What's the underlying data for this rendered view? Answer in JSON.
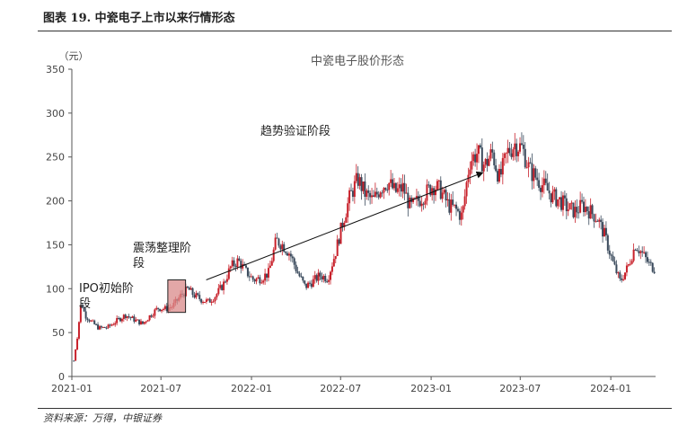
{
  "figure": {
    "title": "图表 19. 中瓷电子上市以来行情形态",
    "source": "资料来源：万得，中银证券"
  },
  "colors": {
    "up": "#c8202a",
    "down": "#3a4a5c",
    "box_fill": "#d98a8a",
    "axis": "#555555"
  },
  "chart_data": {
    "type": "candlestick",
    "title": "中瓷电子股价形态",
    "ylabel": "（元）",
    "ylim": [
      0,
      350
    ],
    "yticks": [
      0,
      50,
      100,
      150,
      200,
      250,
      300,
      350
    ],
    "xlim": [
      "2021-01",
      "2024-04"
    ],
    "xticks": [
      "2021-01",
      "2021-07",
      "2022-01",
      "2022-07",
      "2023-01",
      "2023-07",
      "2024-01"
    ],
    "annotations": [
      {
        "text": "IPO初始阶段",
        "period": [
          "2021-01",
          "2021-07"
        ]
      },
      {
        "text": "震荡整理阶段",
        "period": [
          "2021-07",
          "2021-09"
        ]
      },
      {
        "text": "趋势验证阶段",
        "period": [
          "2021-09",
          "2023-07"
        ]
      }
    ],
    "highlight_box": {
      "x": [
        "2021-07-15",
        "2021-08-20"
      ],
      "y": [
        73,
        110
      ]
    },
    "trend_arrow": {
      "from": [
        "2021-10-01",
        110
      ],
      "to": [
        "2023-04-15",
        232
      ]
    },
    "price_path": [
      [
        "2021-01-05",
        18
      ],
      [
        "2021-01-12",
        45
      ],
      [
        "2021-01-20",
        85
      ],
      [
        "2021-01-28",
        70
      ],
      [
        "2021-02-10",
        62
      ],
      [
        "2021-02-25",
        55
      ],
      [
        "2021-03-15",
        56
      ],
      [
        "2021-04-01",
        63
      ],
      [
        "2021-04-20",
        70
      ],
      [
        "2021-05-10",
        64
      ],
      [
        "2021-05-25",
        60
      ],
      [
        "2021-06-10",
        70
      ],
      [
        "2021-06-25",
        78
      ],
      [
        "2021-07-10",
        77
      ],
      [
        "2021-07-25",
        80
      ],
      [
        "2021-08-10",
        92
      ],
      [
        "2021-08-25",
        100
      ],
      [
        "2021-09-05",
        93
      ],
      [
        "2021-09-20",
        88
      ],
      [
        "2021-10-05",
        85
      ],
      [
        "2021-10-20",
        92
      ],
      [
        "2021-11-05",
        105
      ],
      [
        "2021-11-20",
        125
      ],
      [
        "2021-12-05",
        132
      ],
      [
        "2021-12-20",
        120
      ],
      [
        "2022-01-05",
        110
      ],
      [
        "2022-01-20",
        112
      ],
      [
        "2022-02-05",
        118
      ],
      [
        "2022-02-20",
        155
      ],
      [
        "2022-03-05",
        150
      ],
      [
        "2022-03-20",
        140
      ],
      [
        "2022-04-05",
        118
      ],
      [
        "2022-04-20",
        102
      ],
      [
        "2022-05-05",
        108
      ],
      [
        "2022-05-20",
        115
      ],
      [
        "2022-06-05",
        112
      ],
      [
        "2022-06-20",
        140
      ],
      [
        "2022-07-05",
        175
      ],
      [
        "2022-07-20",
        205
      ],
      [
        "2022-08-05",
        225
      ],
      [
        "2022-08-20",
        208
      ],
      [
        "2022-09-05",
        200
      ],
      [
        "2022-09-20",
        215
      ],
      [
        "2022-10-05",
        222
      ],
      [
        "2022-10-20",
        210
      ],
      [
        "2022-11-05",
        215
      ],
      [
        "2022-11-20",
        192
      ],
      [
        "2022-12-05",
        200
      ],
      [
        "2022-12-20",
        208
      ],
      [
        "2023-01-05",
        218
      ],
      [
        "2023-01-20",
        212
      ],
      [
        "2023-02-05",
        195
      ],
      [
        "2023-02-20",
        190
      ],
      [
        "2023-03-05",
        182
      ],
      [
        "2023-03-20",
        245
      ],
      [
        "2023-04-05",
        255
      ],
      [
        "2023-04-20",
        240
      ],
      [
        "2023-05-05",
        255
      ],
      [
        "2023-05-20",
        225
      ],
      [
        "2023-06-05",
        255
      ],
      [
        "2023-06-20",
        265
      ],
      [
        "2023-07-05",
        260
      ],
      [
        "2023-07-20",
        235
      ],
      [
        "2023-08-05",
        225
      ],
      [
        "2023-08-20",
        215
      ],
      [
        "2023-09-05",
        205
      ],
      [
        "2023-09-20",
        200
      ],
      [
        "2023-10-05",
        192
      ],
      [
        "2023-10-20",
        188
      ],
      [
        "2023-11-05",
        195
      ],
      [
        "2023-11-20",
        188
      ],
      [
        "2023-12-05",
        180
      ],
      [
        "2023-12-20",
        160
      ],
      [
        "2024-01-05",
        130
      ],
      [
        "2024-01-20",
        108
      ],
      [
        "2024-02-05",
        125
      ],
      [
        "2024-02-20",
        150
      ],
      [
        "2024-03-05",
        140
      ],
      [
        "2024-03-20",
        127
      ],
      [
        "2024-04-01",
        122
      ]
    ]
  }
}
